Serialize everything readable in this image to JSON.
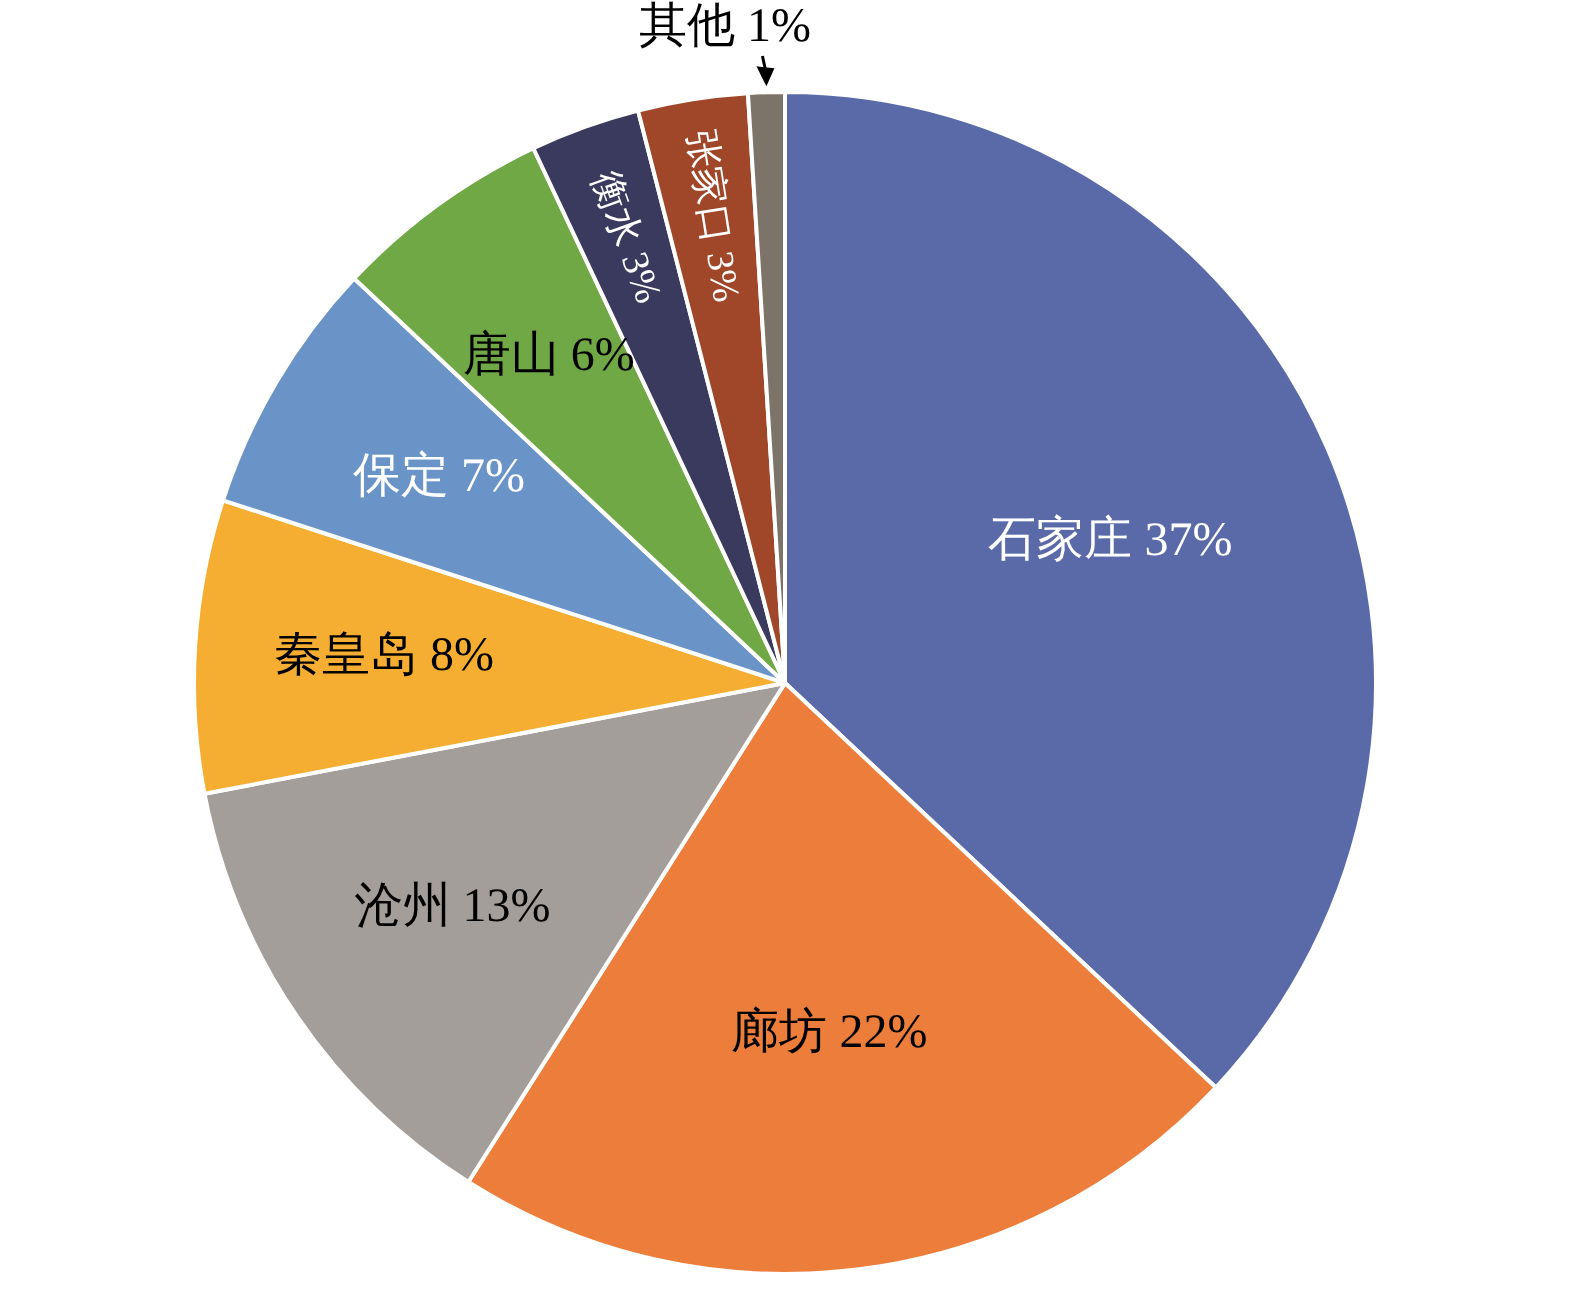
{
  "chart_data": {
    "type": "pie",
    "categories": [
      "石家庄",
      "廊坊",
      "沧州",
      "秦皇岛",
      "保定",
      "唐山",
      "衡水",
      "张家口",
      "其他"
    ],
    "values": [
      37,
      22,
      13,
      8,
      7,
      6,
      3,
      3,
      1
    ],
    "value_labels": [
      "37%",
      "22%",
      "13%",
      "8%",
      "7%",
      "6%",
      "3%",
      "3%",
      "1%"
    ],
    "colors": [
      "#5a6aa8",
      "#ed7d3a",
      "#a39e99",
      "#f5ae32",
      "#6a94c8",
      "#6fa845",
      "#3a3a5e",
      "#a0472a",
      "#7c7468"
    ],
    "legend": false
  }
}
